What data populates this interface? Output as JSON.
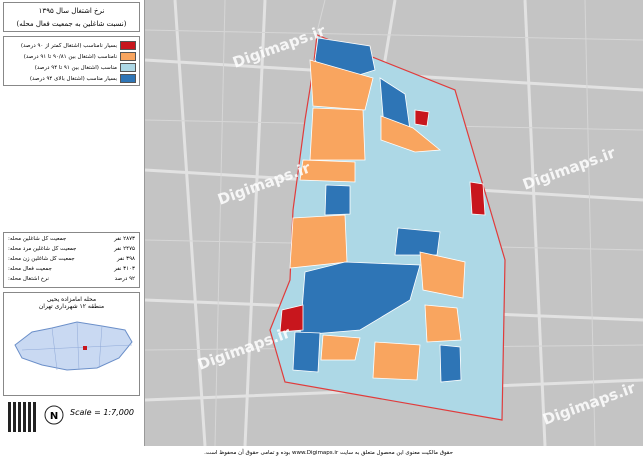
{
  "title": "نرخ اشتغال سال ۱۳۹۵",
  "subtitle": "(نسبت شاغلین به جمعیت فعال محله)",
  "legend": [
    {
      "label": "بسیار نامناسب (اشتغال کمتر از ۹۰ درصد)",
      "color": "#c8161d"
    },
    {
      "label": "نامناسب (اشتغال بین ۹۰/۸۱ تا ۹۱ درصد)",
      "color": "#f9a55f"
    },
    {
      "label": "مناسب (اشتغال بین ۹۱ تا ۹۴ درصد)",
      "color": "#add8e6"
    },
    {
      "label": "بسیار مناسب (اشتغال بالای ۹۴ درصد)",
      "color": "#2e75b6"
    }
  ],
  "stats": [
    {
      "label": "جمعیت کل شاغلین محله:",
      "value": "۲۸۷۳ نفر"
    },
    {
      "label": "جمعیت کل شاغلین مرد محله:",
      "value": "۲۴۷۵ نفر"
    },
    {
      "label": "جمعیت کل شاغلین زن محله:",
      "value": "۳۹۸ نفر"
    },
    {
      "label": "جمعیت فعال محله:",
      "value": "۳۱۰۳ نفر"
    },
    {
      "label": "نرخ اشتغال محله:",
      "value": "۹۲ درصد"
    }
  ],
  "location": {
    "neighborhood": "محله امامزاده یحیی",
    "region": "منطقه ۱۲ شهرداری تهران"
  },
  "scale": "Scale = 1:7,000",
  "north": "N",
  "watermark": "Digimaps.ir",
  "copyright": "حقوق مالکیت معنوی این محصول متعلق به سایت www.Digimaps.ir بوده و تمامی حقوق آن محفوظ است."
}
